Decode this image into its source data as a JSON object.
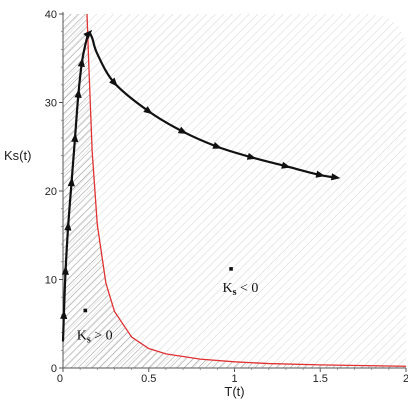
{
  "chart_data": {
    "type": "line",
    "title": "",
    "xlabel": "T(t)",
    "ylabel": "Ks(t)",
    "xlim": [
      0,
      2
    ],
    "ylim": [
      0,
      40
    ],
    "x_ticks": [
      "0",
      "0.5",
      "1",
      "1.5",
      "2"
    ],
    "y_ticks": [
      "0",
      "10",
      "20",
      "30",
      "40"
    ],
    "grid": false,
    "series": [
      {
        "role": "boundary",
        "color": "#e03030",
        "x": [
          0.14,
          0.15,
          0.17,
          0.2,
          0.25,
          0.3,
          0.4,
          0.5,
          0.6,
          0.8,
          1.0,
          1.2,
          1.5,
          2.0
        ],
        "y": [
          40,
          34.5,
          24.5,
          16.2,
          9.6,
          6.4,
          3.5,
          2.2,
          1.6,
          1.0,
          0.7,
          0.5,
          0.35,
          0.2
        ]
      },
      {
        "role": "trajectory",
        "color": "#111111",
        "x": [
          0.0,
          0.005,
          0.015,
          0.03,
          0.05,
          0.07,
          0.09,
          0.11,
          0.13,
          0.15,
          0.17,
          0.2,
          0.3,
          0.5,
          0.7,
          0.9,
          1.1,
          1.3,
          1.5,
          1.6
        ],
        "y": [
          3,
          6,
          11,
          16,
          21,
          26,
          31,
          34.5,
          36.5,
          37.8,
          37.3,
          35.5,
          32.2,
          29.0,
          26.7,
          25.0,
          23.8,
          22.8,
          21.8,
          21.5
        ]
      }
    ],
    "arrows_at_index": [
      1,
      2,
      3,
      4,
      5,
      6,
      7,
      9,
      12,
      13,
      14,
      15,
      16,
      17,
      18
    ],
    "annotations": [
      {
        "text_main": "K",
        "text_sub": "s",
        "text_rest": " < 0",
        "x": 0.93,
        "y": 8.6
      },
      {
        "text_main": "K",
        "text_sub": "s",
        "text_rest": " > 0",
        "x": 0.08,
        "y": 3.2
      }
    ],
    "markers": [
      {
        "x": 0.98,
        "y": 11.2
      },
      {
        "x": 0.13,
        "y": 6.5
      }
    ],
    "regions": [
      {
        "name": "Ks > 0",
        "hatch_color": "#9a9a9a"
      },
      {
        "name": "Ks < 0",
        "hatch_color": "#d2d2d2"
      }
    ]
  }
}
